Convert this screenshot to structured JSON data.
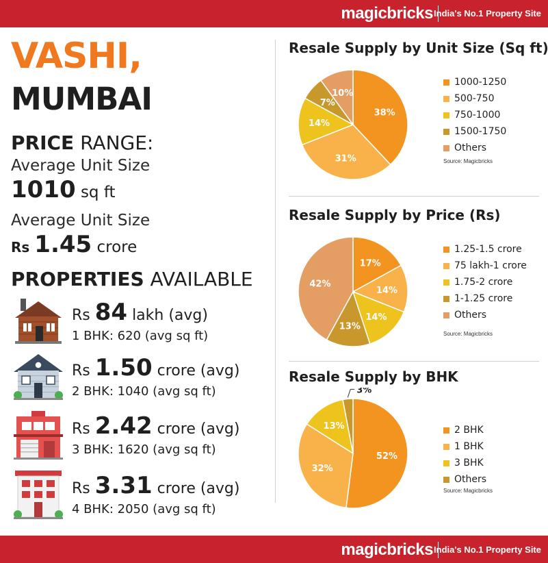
{
  "header": {
    "brand": "magicbricks",
    "tagline": "India's No.1 Property Site"
  },
  "footer": {
    "brand": "magicbricks",
    "tagline": "India's No.1 Property Site"
  },
  "location": {
    "line1": "VASHI,",
    "line2": "MUMBAI"
  },
  "price_range": {
    "title_bold": "PRICE",
    "title_rest": " RANGE:",
    "unit_size_label": "Average Unit Size",
    "unit_size_value": "1010",
    "unit_size_unit": " sq ft",
    "price_label": "Average Unit Size",
    "price_currency": "Rs ",
    "price_value": "1.45",
    "price_unit": " crore"
  },
  "properties": {
    "title_bold": "PROPERTIES",
    "title_rest": " AVAILABLE",
    "items": [
      {
        "currency": "Rs ",
        "price": "84",
        "unit": " lakh (avg)",
        "detail": "1 BHK: 620 (avg sq ft)"
      },
      {
        "currency": "Rs ",
        "price": "1.50",
        "unit": " crore (avg)",
        "detail": "2 BHK: 1040 (avg sq ft)"
      },
      {
        "currency": "Rs ",
        "price": "2.42",
        "unit": " crore (avg)",
        "detail": "3 BHK: 1620 (avg sq ft)"
      },
      {
        "currency": "Rs ",
        "price": "3.31",
        "unit": " crore (avg)",
        "detail": "4 BHK: 2050 (avg sq ft)"
      }
    ]
  },
  "chart_data": [
    {
      "type": "pie",
      "title": "Resale Supply by Unit Size (Sq ft)",
      "source": "Source: Magicbricks",
      "legend_position": "right",
      "slices": [
        {
          "label": "1000-1250",
          "value": 38,
          "color": "#f39320"
        },
        {
          "label": "500-750",
          "value": 31,
          "color": "#f9b24a"
        },
        {
          "label": "750-1000",
          "value": 14,
          "color": "#efc31d"
        },
        {
          "label": "1500-1750",
          "value": 7,
          "color": "#c9982c"
        },
        {
          "label": "Others",
          "value": 10,
          "color": "#e49d63"
        }
      ]
    },
    {
      "type": "pie",
      "title": "Resale Supply by Price (Rs)",
      "source": "Source: Magicbricks",
      "legend_position": "right",
      "slices": [
        {
          "label": "1.25-1.5 crore",
          "value": 17,
          "color": "#f39320"
        },
        {
          "label": "75 lakh-1 crore",
          "value": 14,
          "color": "#f9b24a"
        },
        {
          "label": "1.75-2 crore",
          "value": 14,
          "color": "#efc31d"
        },
        {
          "label": "1-1.25 crore",
          "value": 13,
          "color": "#c9982c"
        },
        {
          "label": "Others",
          "value": 42,
          "color": "#e49d63"
        }
      ]
    },
    {
      "type": "pie",
      "title": "Resale Supply by BHK",
      "source": "Source: Magicbricks",
      "legend_position": "right",
      "slices": [
        {
          "label": "2 BHK",
          "value": 52,
          "color": "#f39320"
        },
        {
          "label": "1 BHK",
          "value": 32,
          "color": "#f9b24a"
        },
        {
          "label": "3 BHK",
          "value": 13,
          "color": "#efc31d"
        },
        {
          "label": "Others",
          "value": 3,
          "color": "#c9982c"
        }
      ]
    }
  ]
}
